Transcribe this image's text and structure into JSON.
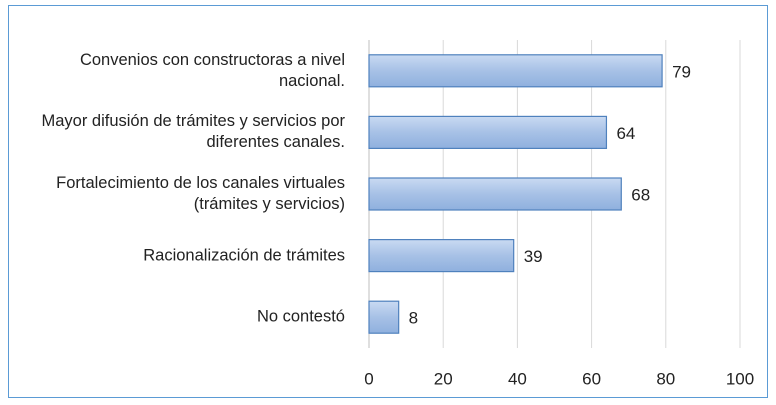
{
  "chart_data": {
    "type": "bar",
    "orientation": "horizontal",
    "categories": [
      "Convenios con constructoras a nivel nacional.",
      "Mayor difusión de trámites y servicios por diferentes canales.",
      "Fortalecimiento de los canales virtuales (trámites y servicios)",
      "Racionalización de trámites",
      "No contestó"
    ],
    "values": [
      79,
      64,
      68,
      39,
      8
    ],
    "color": "#a7c1e6",
    "edge_color": "#4f81bd",
    "xlim": [
      0,
      100
    ],
    "xticks": [
      0,
      20,
      40,
      60,
      80,
      100
    ],
    "grid": true
  }
}
